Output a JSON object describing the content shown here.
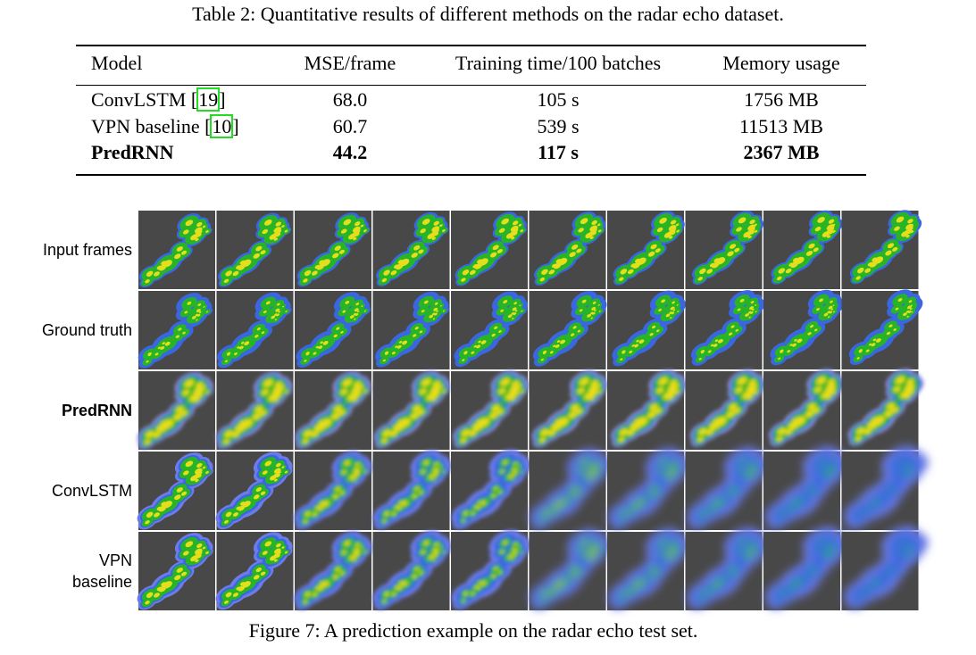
{
  "table": {
    "caption": "Table 2: Quantitative results of different methods on the radar echo dataset.",
    "header": [
      "Model",
      "MSE/frame",
      "Training time/100 batches",
      "Memory usage"
    ],
    "rows": [
      {
        "model": "ConvLSTM [",
        "ref": "19",
        "ref_close": "]",
        "cells": [
          "68.0",
          "105 s",
          "1756 MB"
        ]
      },
      {
        "model": "VPN baseline [",
        "ref": "10",
        "ref_close": "]",
        "cells": [
          "60.7",
          "539 s",
          "11513 MB"
        ]
      },
      {
        "model": "PredRNN",
        "bold": true,
        "cells": [
          "44.2",
          "117 s",
          "2367 MB"
        ]
      }
    ]
  },
  "figure": {
    "row_labels": [
      {
        "lines": [
          "Input frames"
        ]
      },
      {
        "lines": [
          "Ground truth"
        ]
      },
      {
        "lines": [
          "PredRNN"
        ],
        "bold": true
      },
      {
        "lines": [
          "ConvLSTM"
        ]
      },
      {
        "lines": [
          "VPN",
          "baseline"
        ]
      }
    ],
    "caption": "Figure 7: A prediction example on the radar echo test set."
  }
}
